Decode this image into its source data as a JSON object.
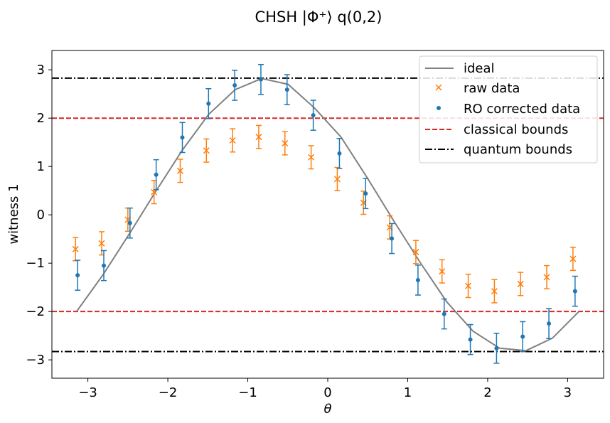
{
  "chart_data": {
    "type": "scatter",
    "title": "CHSH |Φ⁺⟩ q(0,2)",
    "xlabel": "θ",
    "ylabel": "witness 1",
    "xlim": [
      -3.45,
      3.45
    ],
    "ylim": [
      -3.38,
      3.4
    ],
    "xticks": [
      -3,
      -2,
      -1,
      0,
      1,
      2,
      3
    ],
    "xtick_labels": [
      "−3",
      "−2",
      "−1",
      "0",
      "1",
      "2",
      "3"
    ],
    "yticks": [
      -3,
      -2,
      -1,
      0,
      1,
      2,
      3
    ],
    "ytick_labels": [
      "−3",
      "−2",
      "−1",
      "0",
      "1",
      "2",
      "3"
    ],
    "grid": false,
    "legend_position": "top-right",
    "x": [
      -3.1416,
      -2.8142,
      -2.4867,
      -2.1593,
      -1.8318,
      -1.5044,
      -1.1769,
      -0.8495,
      -0.522,
      -0.1946,
      0.1329,
      0.4603,
      0.7878,
      1.1152,
      1.4427,
      1.7701,
      2.0976,
      2.425,
      2.7525,
      3.0799
    ],
    "x_plot": [
      -3.1416,
      -2.8109,
      -2.4802,
      -2.1495,
      -1.8188,
      -1.4881,
      -1.1574,
      -0.8267,
      -0.496,
      -0.1653,
      0.1653,
      0.496,
      0.8267,
      1.1574,
      1.4881,
      1.8188,
      2.1495,
      2.4802,
      2.8109,
      3.1416
    ],
    "series": [
      {
        "name": "ideal",
        "style": "line",
        "color": "#808080",
        "values": [
          -2.0,
          -1.24,
          -0.39,
          0.49,
          1.34,
          2.08,
          2.59,
          2.82,
          2.7,
          2.21,
          1.61,
          0.76,
          -0.13,
          -0.99,
          -1.8,
          -2.41,
          -2.76,
          -2.81,
          -2.55,
          -2.0
        ]
      },
      {
        "name": "raw data",
        "style": "x-markers",
        "color": "#ff7f0e",
        "values": [
          -0.71,
          -0.59,
          -0.1,
          0.47,
          0.91,
          1.33,
          1.54,
          1.61,
          1.48,
          1.19,
          0.74,
          0.25,
          -0.26,
          -0.77,
          -1.17,
          -1.47,
          -1.58,
          -1.43,
          -1.29,
          -0.91
        ],
        "errors": [
          0.24,
          0.24,
          0.24,
          0.24,
          0.24,
          0.24,
          0.24,
          0.24,
          0.24,
          0.24,
          0.24,
          0.24,
          0.24,
          0.24,
          0.24,
          0.24,
          0.24,
          0.24,
          0.24,
          0.24
        ]
      },
      {
        "name": "RO corrected data",
        "style": "dot-markers",
        "color": "#1f77b4",
        "values": [
          -1.25,
          -1.05,
          -0.17,
          0.83,
          1.6,
          2.3,
          2.68,
          2.8,
          2.59,
          2.06,
          1.27,
          0.44,
          -0.49,
          -1.35,
          -2.05,
          -2.58,
          -2.76,
          -2.52,
          -2.25,
          -1.58
        ],
        "errors": [
          0.31,
          0.31,
          0.31,
          0.31,
          0.31,
          0.31,
          0.31,
          0.31,
          0.31,
          0.31,
          0.31,
          0.31,
          0.31,
          0.31,
          0.31,
          0.31,
          0.31,
          0.31,
          0.31,
          0.31
        ]
      }
    ],
    "hlines": [
      {
        "name": "classical bounds",
        "style": "dashed",
        "color": "#d62728",
        "values": [
          2.0,
          -2.0
        ]
      },
      {
        "name": "quantum bounds",
        "style": "dashdot",
        "color": "#000000",
        "values": [
          2.828,
          -2.828
        ]
      }
    ]
  }
}
